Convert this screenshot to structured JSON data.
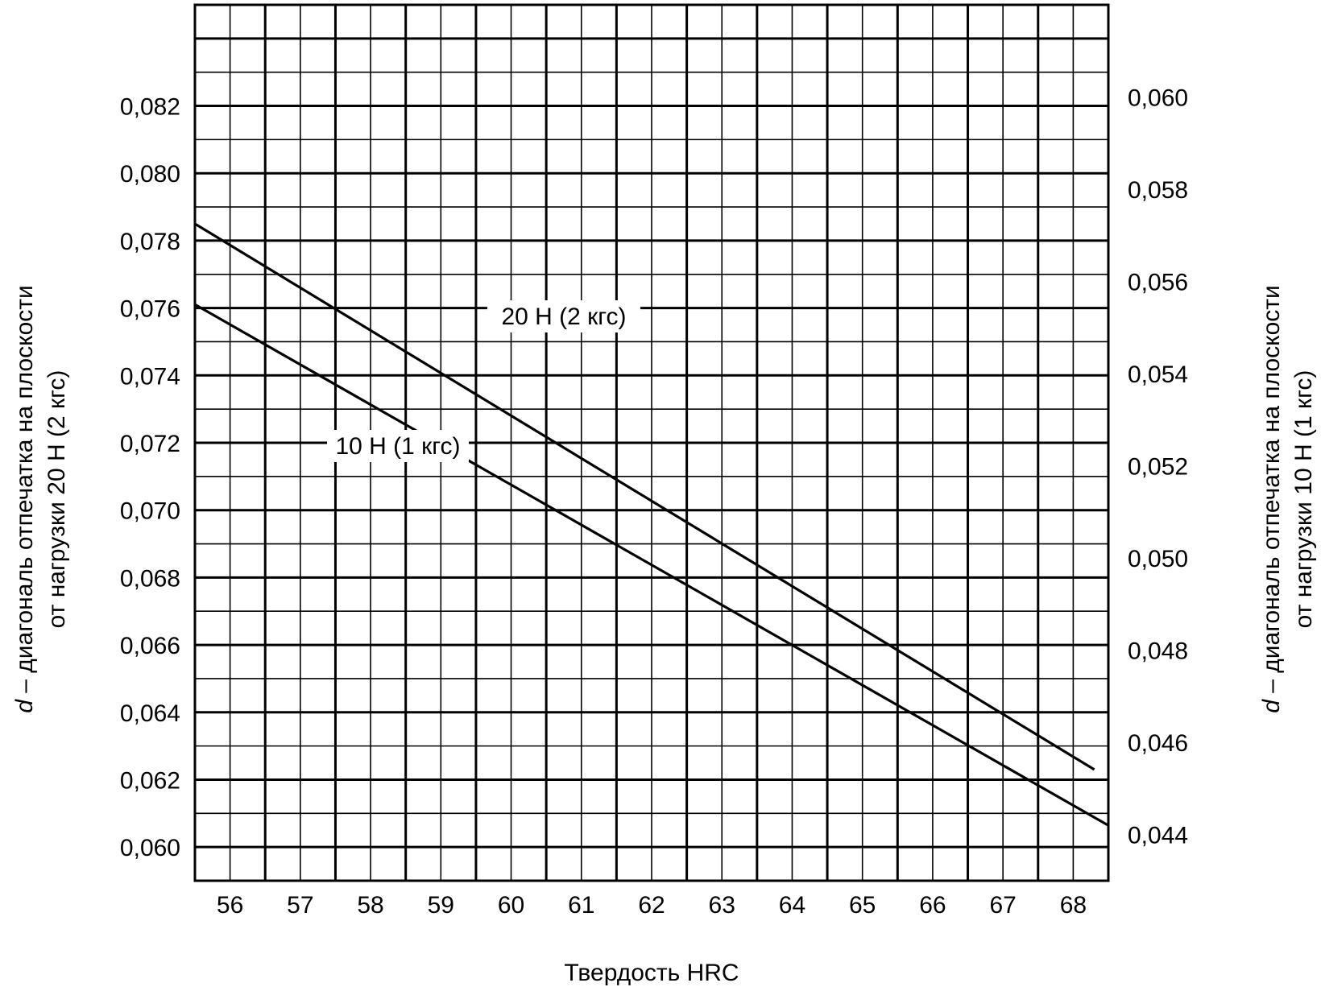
{
  "chart_data": {
    "type": "line",
    "x": [
      55.5,
      68.5
    ],
    "xlabel": "Твердость HRC",
    "xlim": [
      55.5,
      68.5
    ],
    "xticks": [
      "56",
      "57",
      "58",
      "59",
      "60",
      "61",
      "62",
      "63",
      "64",
      "65",
      "66",
      "67",
      "68"
    ],
    "ylabel_left": {
      "prefix": "d",
      "line1": " – диагональ отпечатка на плоскости",
      "line2": "от нагрузки 20 Н (2 кгс)"
    },
    "ylabel_right": {
      "prefix": "d",
      "line1": " – диагональ отпечатка на плоскости",
      "line2": "от нагрузки 10 Н (1 кгс)"
    },
    "ylim_left": [
      0.059,
      0.085
    ],
    "yticks_left": [
      "0,060",
      "0,062",
      "0,064",
      "0,066",
      "0,068",
      "0,070",
      "0,072",
      "0,074",
      "0,076",
      "0,078",
      "0,080",
      "0,082"
    ],
    "ylim_right": [
      0.043,
      0.062
    ],
    "yticks_right": [
      "0,044",
      "0,046",
      "0,048",
      "0,050",
      "0,052",
      "0,054",
      "0,056",
      "0,058",
      "0,060"
    ],
    "grid": true,
    "series": [
      {
        "name": "20 Н (2 кгс)",
        "axis": "left",
        "x": [
          55.5,
          68.3
        ],
        "y": [
          0.0785,
          0.0623
        ]
      },
      {
        "name": "10 Н (1 кгс)",
        "axis": "right",
        "x": [
          55.5,
          68.5
        ],
        "y": [
          0.0555,
          0.0442
        ]
      }
    ]
  }
}
